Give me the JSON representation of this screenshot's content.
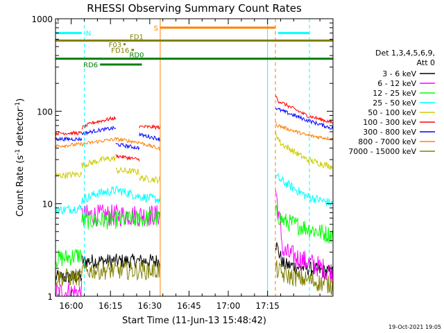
{
  "chart_data": {
    "type": "line",
    "title": "RHESSI Observing Summary Count Rates",
    "xlabel": "Start Time (11-Jun-13 15:48:42)",
    "ylabel_main": "Count Rate (s",
    "ylabel_sup1": "-1",
    "ylabel_mid": " detector",
    "ylabel_sup2": "-1",
    "ylabel_end": ")",
    "x_axis": {
      "type": "time",
      "range_min": [
        -6,
        100
      ],
      "ticks": [
        0,
        15,
        30,
        45,
        60,
        75
      ],
      "tick_labels": [
        "16:00",
        "16:15",
        "16:30",
        "16:45",
        "17:00",
        "17:15"
      ]
    },
    "y_axis": {
      "type": "log",
      "range": [
        1,
        1000
      ],
      "ticks": [
        1,
        10,
        100,
        1000
      ],
      "tick_labels": [
        "1",
        "10",
        "100",
        "1000"
      ]
    },
    "legend": {
      "position": "right",
      "header": [
        "Det 1,3,4,5,6,9,",
        "Att 0"
      ],
      "entries": [
        {
          "label": "3 - 6 keV",
          "color": "#000000"
        },
        {
          "label": "6 - 12 keV",
          "color": "#ff00ff"
        },
        {
          "label": "12 - 25 keV",
          "color": "#00ff00"
        },
        {
          "label": "25 - 50 keV",
          "color": "#00ffff"
        },
        {
          "label": "50 - 100 keV",
          "color": "#cccc00"
        },
        {
          "label": "100 - 300 keV",
          "color": "#ff0000"
        },
        {
          "label": "300 - 800 keV",
          "color": "#0000ff"
        },
        {
          "label": "800 - 7000 keV",
          "color": "#ff8000"
        },
        {
          "label": "7000 - 15000 keV",
          "color": "#808000"
        }
      ]
    },
    "gaps": [
      [
        34,
        78
      ]
    ],
    "series": [
      {
        "name": "3 - 6 keV",
        "color": "#000000",
        "noise": 0.08,
        "segments": [
          {
            "x": [
              -6,
              4
            ],
            "y": [
              1.6,
              1.6
            ]
          },
          {
            "x": [
              4,
              34
            ],
            "y": [
              2.4,
              2.4
            ]
          },
          {
            "x": [
              78,
              81,
              100
            ],
            "y": [
              3.8,
              2.2,
              1.8
            ]
          }
        ]
      },
      {
        "name": "6 - 12 keV",
        "color": "#ff00ff",
        "noise": 0.12,
        "segments": [
          {
            "x": [
              -6,
              4
            ],
            "y": [
              1.1,
              1.1
            ]
          },
          {
            "x": [
              4,
              34
            ],
            "y": [
              7.5,
              7.5
            ]
          },
          {
            "x": [
              78,
              81,
              100
            ],
            "y": [
              15,
              3,
              1.8
            ]
          }
        ]
      },
      {
        "name": "12 - 25 keV",
        "color": "#00ff00",
        "noise": 0.1,
        "segments": [
          {
            "x": [
              -6,
              4
            ],
            "y": [
              2.5,
              2.8
            ]
          },
          {
            "x": [
              4,
              34
            ],
            "y": [
              6.5,
              7
            ]
          },
          {
            "x": [
              78,
              81,
              100
            ],
            "y": [
              8,
              6.5,
              4.5
            ]
          }
        ]
      },
      {
        "name": "25 - 50 keV",
        "color": "#00ffff",
        "noise": 0.05,
        "segments": [
          {
            "x": [
              -6,
              4
            ],
            "y": [
              8.5,
              9
            ]
          },
          {
            "x": [
              4,
              10,
              18,
              26,
              34
            ],
            "y": [
              11,
              13,
              14,
              12,
              11
            ]
          },
          {
            "x": [
              78,
              80,
              90,
              100
            ],
            "y": [
              20,
              18,
              12,
              10
            ]
          }
        ]
      },
      {
        "name": "50 - 100 keV",
        "color": "#cccc00",
        "noise": 0.035,
        "segments": [
          {
            "x": [
              -6,
              4
            ],
            "y": [
              20,
              21
            ]
          },
          {
            "x": [
              4,
              12,
              17
            ],
            "y": [
              26,
              30,
              31
            ]
          },
          {
            "x": [
              17,
              26
            ],
            "y": [
              23,
              22
            ]
          },
          {
            "x": [
              26,
              34
            ],
            "y": [
              19,
              18
            ]
          },
          {
            "x": [
              78,
              80,
              90,
              100
            ],
            "y": [
              60,
              45,
              30,
              25
            ]
          }
        ]
      },
      {
        "name": "100 - 300 keV",
        "color": "#ff0000",
        "noise": 0.02,
        "segments": [
          {
            "x": [
              -6,
              4
            ],
            "y": [
              58,
              58
            ]
          },
          {
            "x": [
              4,
              8,
              17
            ],
            "y": [
              66,
              75,
              85
            ]
          },
          {
            "x": [
              17,
              26
            ],
            "y": [
              33,
              30
            ]
          },
          {
            "x": [
              26,
              34
            ],
            "y": [
              68,
              67
            ]
          },
          {
            "x": [
              78,
              79,
              90,
              100
            ],
            "y": [
              150,
              130,
              90,
              75
            ]
          }
        ]
      },
      {
        "name": "300 - 800 keV",
        "color": "#0000ff",
        "noise": 0.02,
        "segments": [
          {
            "x": [
              -6,
              4
            ],
            "y": [
              50,
              50
            ]
          },
          {
            "x": [
              4,
              10,
              17
            ],
            "y": [
              57,
              62,
              66
            ]
          },
          {
            "x": [
              17,
              26
            ],
            "y": [
              44,
              40
            ]
          },
          {
            "x": [
              26,
              34
            ],
            "y": [
              56,
              50
            ]
          },
          {
            "x": [
              78,
              79,
              90,
              100
            ],
            "y": [
              110,
              105,
              80,
              65
            ]
          }
        ]
      },
      {
        "name": "800 - 7000 keV",
        "color": "#ff8000",
        "noise": 0.02,
        "segments": [
          {
            "x": [
              -6,
              4,
              10,
              17,
              26,
              34
            ],
            "y": [
              42,
              44,
              47,
              50,
              46,
              39
            ]
          },
          {
            "x": [
              78,
              79,
              90,
              100
            ],
            "y": [
              75,
              70,
              55,
              50
            ]
          }
        ]
      },
      {
        "name": "7000 - 15000 keV",
        "color": "#808000",
        "noise": 0.1,
        "segments": [
          {
            "x": [
              -6,
              4
            ],
            "y": [
              1.6,
              1.6
            ]
          },
          {
            "x": [
              4,
              34
            ],
            "y": [
              1.9,
              1.9
            ]
          },
          {
            "x": [
              78,
              81,
              100
            ],
            "y": [
              2,
              1.7,
              1.3
            ]
          }
        ]
      }
    ],
    "vertical_lines": [
      {
        "x": -6,
        "color": "#00ffff",
        "style": "solid"
      },
      {
        "x": 5,
        "color": "#00ffff",
        "style": "dash"
      },
      {
        "x": 34,
        "color": "#ff8000",
        "style": "solid"
      },
      {
        "x": 75,
        "color": "#00ffff",
        "style": "solid"
      },
      {
        "x": 78,
        "color": "#00ffff",
        "style": "dash"
      },
      {
        "x": 78,
        "color": "#ff8000",
        "style": "dash"
      },
      {
        "x": 91,
        "color": "#00ffff",
        "style": "dash"
      }
    ],
    "intervals": [
      {
        "label": "N",
        "color": "#00ffff",
        "x_start": -6,
        "x_end": 4,
        "y": 700,
        "label_pos": "right"
      },
      {
        "label": "N",
        "color": "#00ffff",
        "x_start": 79,
        "x_end": 91,
        "y": 700,
        "label_pos": "none"
      },
      {
        "label": "S",
        "color": "#ff8000",
        "x_start": 34,
        "x_end": 78,
        "y": 800,
        "label_pos": "left"
      },
      {
        "label": "FD1",
        "color": "#808000",
        "x_start": -6,
        "x_end": 100,
        "y": 580,
        "label_pos": "above-mid"
      },
      {
        "label": "F03",
        "color": "#808000",
        "x_start": 20,
        "x_end": 20,
        "y": 530,
        "label_pos": "left"
      },
      {
        "label": "FD16",
        "color": "#808000",
        "x_start": 23,
        "x_end": 24,
        "y": 460,
        "label_pos": "left"
      },
      {
        "label": "RD0",
        "color": "#008000",
        "x_start": -6,
        "x_end": 100,
        "y": 370,
        "label_pos": "above-mid"
      },
      {
        "label": "RD6",
        "color": "#008000",
        "x_start": 11,
        "x_end": 27,
        "y": 320,
        "label_pos": "left"
      }
    ]
  },
  "footer": {
    "timestamp": "19-Oct-2021 19:05"
  }
}
